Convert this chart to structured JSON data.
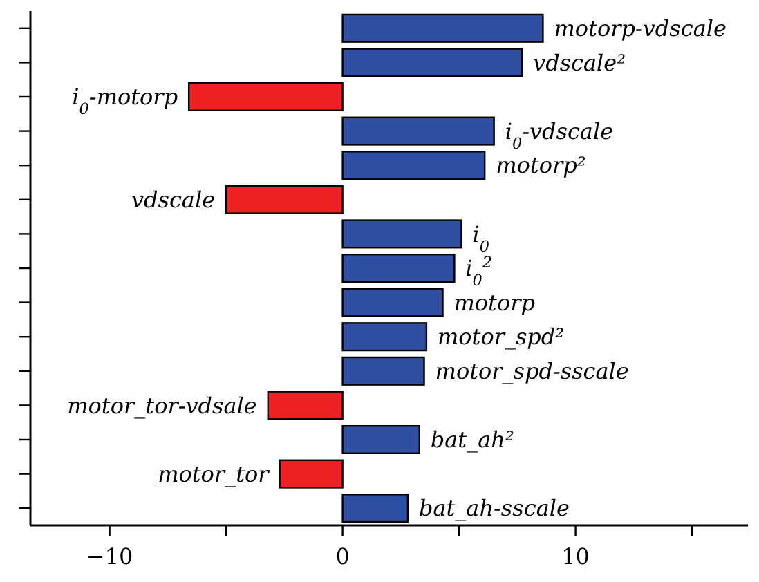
{
  "chart_data": {
    "type": "bar",
    "orientation": "horizontal",
    "categories": [
      "motorp-vdscale",
      "vdscale²",
      "i$_{0}$-motorp",
      "i$_{0}$-vdscale",
      "motorp²",
      "vdscale",
      "i$_{0}$",
      "i$_{0}$$^{2}$",
      "motorp",
      "motor_spd²",
      "motor_spd-sscale",
      "motor_tor-vdsale",
      "bat_ah²",
      "motor_tor",
      "bat_ah-sscale"
    ],
    "values": [
      8.6,
      7.7,
      -6.6,
      6.5,
      6.1,
      -5.0,
      5.1,
      4.8,
      4.3,
      3.6,
      3.5,
      -3.2,
      3.3,
      -2.7,
      2.8
    ],
    "colors": [
      "#2f4fa2",
      "#2f4fa2",
      "#ee2222",
      "#2f4fa2",
      "#2f4fa2",
      "#ee2222",
      "#2f4fa2",
      "#2f4fa2",
      "#2f4fa2",
      "#2f4fa2",
      "#2f4fa2",
      "#ee2222",
      "#2f4fa2",
      "#ee2222",
      "#2f4fa2"
    ],
    "xlim": [
      -13.4,
      17.4
    ],
    "xticks": [
      -10,
      {
        "value": -5,
        "label": null
      },
      0,
      {
        "value": 5,
        "label": null
      },
      10,
      {
        "value": 15,
        "label": null
      }
    ],
    "tick_labels": "x"
  }
}
